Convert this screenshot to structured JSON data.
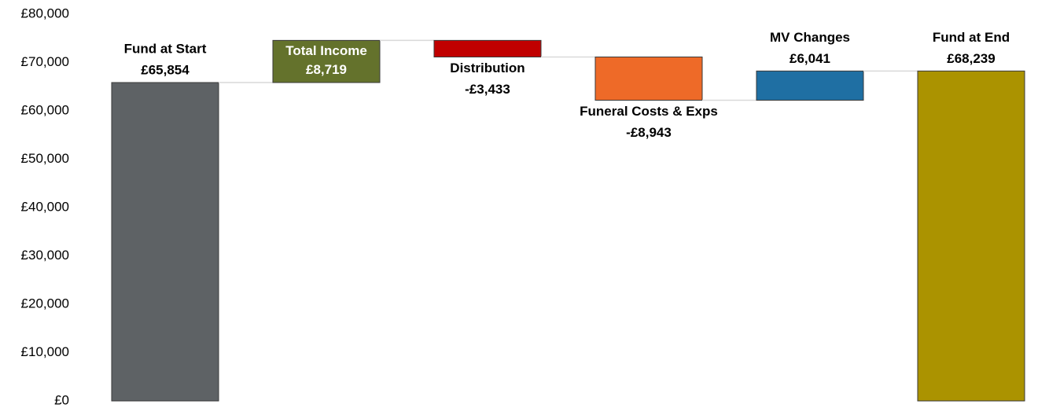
{
  "chart_data": {
    "type": "waterfall",
    "categories": [
      "Fund at Start",
      "Total Income",
      "Distribution",
      "Funeral Costs & Exps",
      "MV Changes",
      "Fund at End"
    ],
    "values": [
      65854,
      8719,
      -3433,
      -8943,
      6041,
      68239
    ],
    "value_labels": [
      "£65,854",
      "£8,719",
      "-£3,433",
      "-£8,943",
      "£6,041",
      "£68,239"
    ],
    "measures": [
      "absolute",
      "relative",
      "relative",
      "relative",
      "relative",
      "total"
    ],
    "colors": [
      "#5e6265",
      "#64722c",
      "#c00000",
      "#ee6a28",
      "#1f6fa3",
      "#ab9300"
    ],
    "label_positions": [
      "above",
      "inside",
      "below",
      "below",
      "above",
      "above"
    ],
    "ylim": [
      0,
      80000
    ],
    "yticks": [
      {
        "value": 0,
        "label": "£0"
      },
      {
        "value": 10000,
        "label": "£10,000"
      },
      {
        "value": 20000,
        "label": "£20,000"
      },
      {
        "value": 30000,
        "label": "£30,000"
      },
      {
        "value": 40000,
        "label": "£40,000"
      },
      {
        "value": 50000,
        "label": "£50,000"
      },
      {
        "value": 60000,
        "label": "£60,000"
      },
      {
        "value": 70000,
        "label": "£70,000"
      },
      {
        "value": 80000,
        "label": "£80,000"
      }
    ],
    "grid": false
  }
}
